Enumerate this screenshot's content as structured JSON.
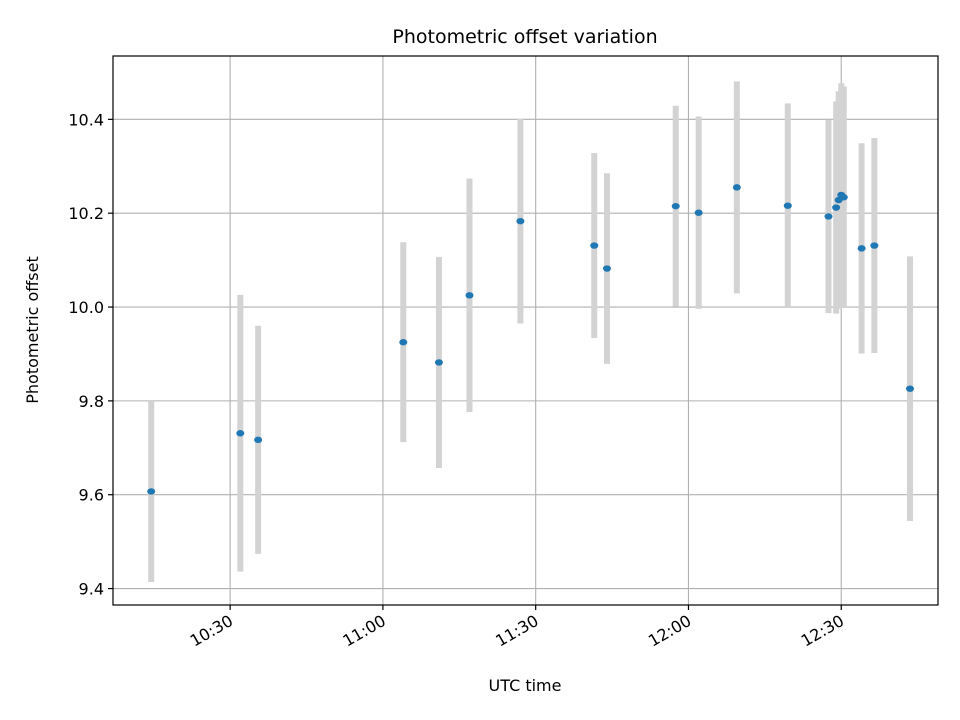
{
  "chart_data": {
    "type": "scatter",
    "title": "Photometric offset variation",
    "xlabel": "UTC time",
    "ylabel": "Photometric offset",
    "xlim": [
      "10:07",
      "12:49"
    ],
    "ylim": [
      9.365,
      10.535
    ],
    "grid": true,
    "legend": "none",
    "x_ticks": [
      "10:30",
      "11:00",
      "11:30",
      "12:00",
      "12:30"
    ],
    "y_ticks": [
      "9.4",
      "9.6",
      "9.8",
      "10.0",
      "10.2",
      "10.4"
    ],
    "marker_color": "#1f77b4",
    "errorbar_color": "#d3d3d3",
    "points": [
      {
        "x": "10:14:30",
        "y": 9.607,
        "yerr": 0.193
      },
      {
        "x": "10:32:00",
        "y": 9.731,
        "yerr": 0.295
      },
      {
        "x": "10:35:30",
        "y": 9.717,
        "yerr": 0.243
      },
      {
        "x": "11:04:00",
        "y": 9.925,
        "yerr": 0.213
      },
      {
        "x": "11:11:00",
        "y": 9.882,
        "yerr": 0.225
      },
      {
        "x": "11:17:00",
        "y": 10.025,
        "yerr": 0.249
      },
      {
        "x": "11:27:00",
        "y": 10.183,
        "yerr": 0.218
      },
      {
        "x": "11:41:30",
        "y": 10.131,
        "yerr": 0.197
      },
      {
        "x": "11:44:00",
        "y": 10.082,
        "yerr": 0.203
      },
      {
        "x": "11:57:30",
        "y": 10.215,
        "yerr": 0.214
      },
      {
        "x": "12:02:00",
        "y": 10.201,
        "yerr": 0.205
      },
      {
        "x": "12:09:30",
        "y": 10.255,
        "yerr": 0.226
      },
      {
        "x": "12:19:30",
        "y": 10.216,
        "yerr": 0.218
      },
      {
        "x": "12:27:30",
        "y": 10.193,
        "yerr": 0.206
      },
      {
        "x": "12:29:00",
        "y": 10.212,
        "yerr": 0.226
      },
      {
        "x": "12:29:30",
        "y": 10.228,
        "yerr": 0.232
      },
      {
        "x": "12:30:00",
        "y": 10.239,
        "yerr": 0.238
      },
      {
        "x": "12:30:30",
        "y": 10.234,
        "yerr": 0.236
      },
      {
        "x": "12:34:00",
        "y": 10.125,
        "yerr": 0.224
      },
      {
        "x": "12:36:30",
        "y": 10.131,
        "yerr": 0.229
      },
      {
        "x": "12:43:30",
        "y": 9.826,
        "yerr": 0.282
      }
    ]
  }
}
